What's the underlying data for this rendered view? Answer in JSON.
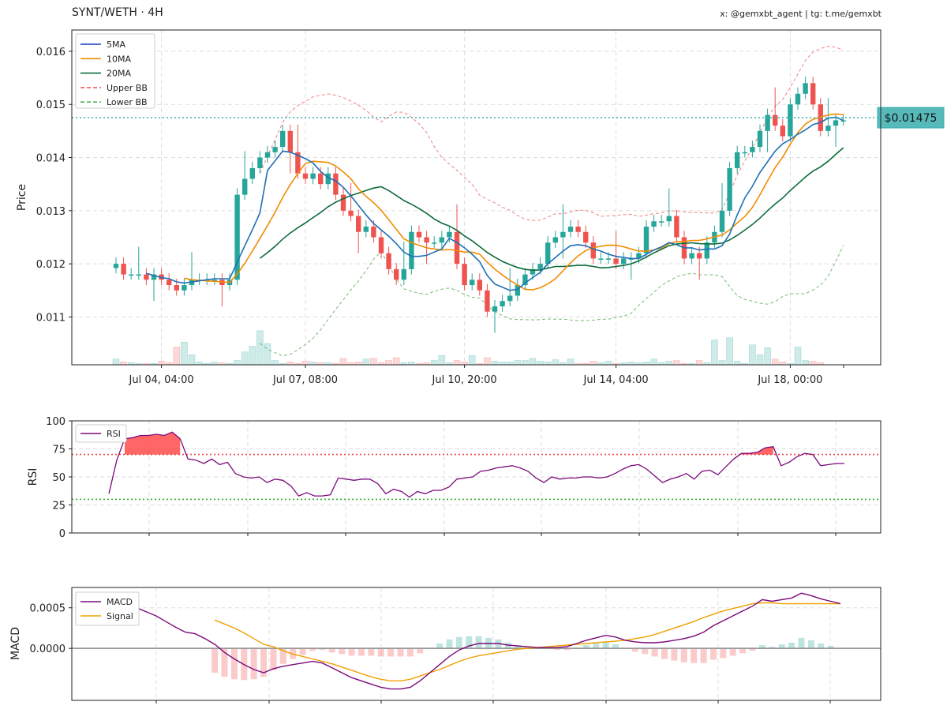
{
  "header": {
    "title": "SYNT/WETH · 4H",
    "credit": "x: @gemxbt_agent | tg: t.me/gemxbt"
  },
  "colors": {
    "up": "#26a69a",
    "down": "#ef5350",
    "ma5": "#1f3fbf",
    "ma5_line": "#1f6fb5",
    "ma10": "#f08c00",
    "ma20": "#0b6b3a",
    "bb_upper": "#f06060",
    "bb_lower": "#55aa55",
    "rsi": "#7a0a7a",
    "macd": "#7a0a7a",
    "signal": "#f0a000",
    "current_price": "#3aaeae"
  },
  "chart_data": [
    {
      "type": "candlestick",
      "ylabel": "Price",
      "ylim": [
        0.0101,
        0.0164
      ],
      "yticks": [
        "0.011",
        "0.012",
        "0.013",
        "0.014",
        "0.015",
        "0.016"
      ],
      "ytick_values": [
        0.011,
        0.012,
        0.013,
        0.014,
        0.015,
        0.016
      ],
      "xticks": [
        "Jul 04, 04:00",
        "Jul 07, 08:00",
        "Jul 10, 20:00",
        "Jul 14, 04:00",
        "Jul 18, 00:00"
      ],
      "xtick_index": [
        6,
        25,
        46,
        66,
        89
      ],
      "grid": true,
      "legend_position": "top-left",
      "legend": [
        "5MA",
        "10MA",
        "20MA",
        "Upper BB",
        "Lower BB"
      ],
      "current_price": 0.01475,
      "current_price_label": "$0.01475",
      "close": [
        0.012,
        0.0118,
        0.0118,
        0.0118,
        0.0117,
        0.0118,
        0.0117,
        0.0116,
        0.0115,
        0.0116,
        0.0117,
        0.0117,
        0.0117,
        0.0117,
        0.0116,
        0.0117,
        0.0133,
        0.0136,
        0.0138,
        0.014,
        0.0141,
        0.0142,
        0.0145,
        0.0141,
        0.0137,
        0.0136,
        0.0137,
        0.0135,
        0.0137,
        0.0133,
        0.013,
        0.0129,
        0.0126,
        0.0127,
        0.0125,
        0.0122,
        0.0119,
        0.0117,
        0.0119,
        0.0126,
        0.0125,
        0.0124,
        0.0124,
        0.0125,
        0.0126,
        0.012,
        0.0116,
        0.0117,
        0.0115,
        0.0111,
        0.0112,
        0.0113,
        0.0114,
        0.0116,
        0.0118,
        0.0119,
        0.012,
        0.0124,
        0.0125,
        0.0126,
        0.0127,
        0.0126,
        0.0124,
        0.0121,
        0.0121,
        0.0121,
        0.012,
        0.0121,
        0.0121,
        0.0122,
        0.0127,
        0.0128,
        0.0128,
        0.0129,
        0.0125,
        0.0121,
        0.0122,
        0.0121,
        0.0124,
        0.0126,
        0.013,
        0.0138,
        0.0141,
        0.0141,
        0.0142,
        0.0145,
        0.0148,
        0.0146,
        0.0144,
        0.015,
        0.0152,
        0.0154,
        0.015,
        0.0145,
        0.0146,
        0.0147,
        0.0147
      ],
      "ma5": [
        null,
        null,
        null,
        null,
        0.01182,
        0.01178,
        0.01174,
        0.01172,
        0.01166,
        0.01164,
        0.01166,
        0.01168,
        0.0117,
        0.01172,
        0.01172,
        0.01172,
        0.01203,
        0.01234,
        0.01264,
        0.01296,
        0.01376,
        0.01394,
        0.01412,
        0.0141,
        0.01404,
        0.01398,
        0.0139,
        0.01374,
        0.01362,
        0.01356,
        0.01344,
        0.01328,
        0.0131,
        0.01292,
        0.01276,
        0.01264,
        0.01252,
        0.01238,
        0.01222,
        0.01214,
        0.01214,
        0.01216,
        0.01222,
        0.01228,
        0.01248,
        0.0124,
        0.0123,
        0.01218,
        0.01204,
        0.01178,
        0.01162,
        0.01156,
        0.0115,
        0.01152,
        0.01164,
        0.01174,
        0.01184,
        0.012,
        0.01212,
        0.01224,
        0.01234,
        0.01236,
        0.01234,
        0.01228,
        0.01224,
        0.01218,
        0.01214,
        0.01212,
        0.0121,
        0.0121,
        0.01218,
        0.01226,
        0.01232,
        0.0124,
        0.01236,
        0.0123,
        0.0123,
        0.01226,
        0.01228,
        0.01228,
        0.01234,
        0.01256,
        0.01292,
        0.01324,
        0.01346,
        0.01372,
        0.01392,
        0.01412,
        0.01426,
        0.01434,
        0.01444,
        0.01452,
        0.01462,
        0.01466,
        0.01474,
        0.01476,
        0.0147
      ]
    },
    {
      "type": "line",
      "name": "RSI",
      "ylabel": "RSI",
      "ylim": [
        0,
        100
      ],
      "yticks": [
        0,
        25,
        50,
        75,
        100
      ],
      "overbought": 70,
      "oversold": 30,
      "legend_position": "top-left",
      "values": [
        35,
        65,
        84,
        85,
        87,
        87,
        88,
        87,
        90,
        84,
        66,
        65,
        62,
        66,
        61,
        63,
        53,
        50,
        49,
        50,
        45,
        48,
        47,
        42,
        33,
        36,
        33,
        33,
        34,
        49,
        48,
        47,
        48,
        48,
        44,
        35,
        39,
        37,
        32,
        37,
        35,
        38,
        38,
        41,
        48,
        49,
        50,
        55,
        56,
        58,
        59,
        60,
        58,
        55,
        49,
        45,
        50,
        48,
        49,
        49,
        50,
        50,
        49,
        50,
        53,
        57,
        60,
        61,
        57,
        51,
        45,
        48,
        50,
        53,
        48,
        55,
        56,
        52,
        59,
        66,
        71,
        71,
        72,
        76,
        77,
        60,
        63,
        68,
        71,
        70,
        60,
        61,
        62,
        62
      ]
    },
    {
      "type": "line",
      "ylabel": "MACD",
      "ylim": [
        -0.00064,
        0.00075
      ],
      "yticks": [
        "0.0000",
        "0.0005"
      ],
      "ytick_values": [
        0,
        0.0005
      ],
      "legend_position": "top-left",
      "series": [
        {
          "name": "MACD",
          "values": [
            0.0005,
            0.00045,
            0.0004,
            0.00033,
            0.00026,
            0.0002,
            0.00018,
            0.00012,
            5e-05,
            -5e-05,
            -0.00013,
            -0.0002,
            -0.00026,
            -0.0003,
            -0.00025,
            -0.00022,
            -0.0002,
            -0.00018,
            -0.00016,
            -0.00018,
            -0.00024,
            -0.0003,
            -0.00036,
            -0.0004,
            -0.00044,
            -0.00048,
            -0.0005,
            -0.0005,
            -0.00048,
            -0.0004,
            -0.0003,
            -0.0002,
            -0.0001,
            -2e-05,
            3e-05,
            6e-05,
            6e-05,
            6e-05,
            4e-05,
            3e-05,
            2e-05,
            1e-05,
            1e-05,
            1e-05,
            2e-05,
            6e-05,
            0.0001,
            0.00013,
            0.00016,
            0.00014,
            0.0001,
            8e-05,
            7e-05,
            7e-05,
            8e-05,
            0.0001,
            0.00012,
            0.00015,
            0.0002,
            0.00028,
            0.00034,
            0.0004,
            0.00046,
            0.00052,
            0.0006,
            0.00058,
            0.0006,
            0.00062,
            0.00068,
            0.00065,
            0.00061,
            0.00058,
            0.00055
          ]
        },
        {
          "name": "Signal",
          "values": [
            null,
            null,
            null,
            null,
            null,
            null,
            null,
            null,
            0.00035,
            0.0003,
            0.00025,
            0.00019,
            0.00012,
            5e-05,
            2e-05,
            -3e-05,
            -7e-05,
            -0.0001,
            -0.00013,
            -0.00016,
            -0.00019,
            -0.00023,
            -0.00027,
            -0.00031,
            -0.00035,
            -0.00038,
            -0.0004,
            -0.0004,
            -0.00038,
            -0.00034,
            -0.0003,
            -0.00026,
            -0.00021,
            -0.00016,
            -0.00012,
            -9e-05,
            -7e-05,
            -5e-05,
            -3e-05,
            -1e-05,
            0.0,
            1e-05,
            2e-05,
            3e-05,
            4e-05,
            5e-05,
            6e-05,
            7e-05,
            8e-05,
            9e-05,
            0.0001,
            0.00012,
            0.00014,
            0.00017,
            0.00021,
            0.00025,
            0.00029,
            0.00033,
            0.00038,
            0.00042,
            0.00046,
            0.00049,
            0.00052,
            0.00055,
            0.00056,
            0.00056,
            0.00055,
            0.00055,
            0.00055,
            0.00055,
            0.00055,
            0.00055,
            0.00055
          ]
        }
      ],
      "legend": [
        "MACD",
        "Signal"
      ]
    }
  ]
}
